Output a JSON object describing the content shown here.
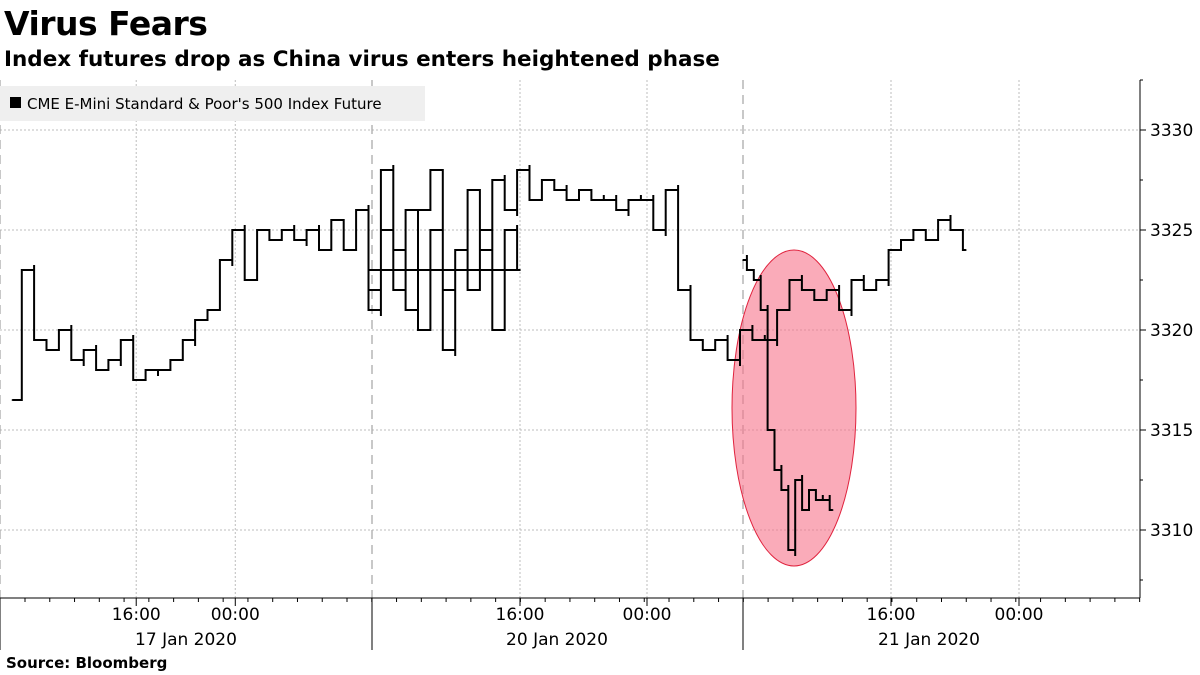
{
  "title": "Virus Fears",
  "subtitle": "Index futures drop as China virus enters heightened phase",
  "source": "Source: Bloomberg",
  "colors": {
    "line": "#000000",
    "highlight_fill": "#f7738a",
    "highlight_stroke": "#e0223d",
    "grid": "#bdbdbd",
    "legend_bg": "#efefef"
  },
  "chart_data": {
    "type": "line",
    "series": [
      {
        "name": "CME E-Mini Standard & Poor's 500 Index Future",
        "x": [
          "17 Jan 2020 06:00",
          "17 Jan 2020 07:00",
          "17 Jan 2020 08:00",
          "17 Jan 2020 09:00",
          "17 Jan 2020 10:00",
          "17 Jan 2020 11:00",
          "17 Jan 2020 12:00",
          "17 Jan 2020 13:00",
          "17 Jan 2020 14:00",
          "17 Jan 2020 15:00",
          "17 Jan 2020 16:00",
          "17 Jan 2020 17:00",
          "17 Jan 2020 18:00",
          "17 Jan 2020 19:00",
          "17 Jan 2020 20:00",
          "17 Jan 2020 21:00",
          "17 Jan 2020 22:00",
          "17 Jan 2020 23:00",
          "18 Jan 2020 00:00",
          "18 Jan 2020 01:00",
          "18 Jan 2020 02:00",
          "18 Jan 2020 03:00",
          "18 Jan 2020 04:00",
          "18 Jan 2020 05:00",
          "18 Jan 2020 06:00",
          "18 Jan 2020 07:00",
          "18 Jan 2020 08:00",
          "18 Jan 2020 09:00",
          "18 Jan 2020 10:00",
          "18 Jan 2020 11:00",
          "18 Jan 2020 12:00",
          "18 Jan 2020 13:00",
          "18 Jan 2020 14:00",
          "18 Jan 2020 15:00",
          "18 Jan 2020 16:00",
          "18 Jan 2020 17:00",
          "18 Jan 2020 18:00",
          "18 Jan 2020 19:00",
          "18 Jan 2020 20:00",
          "18 Jan 2020 21:00",
          "18 Jan 2020 22:00",
          "18 Jan 2020 23:00",
          "19 Jan 2020 00:00",
          "19 Jan 2020 01:00",
          "19 Jan 2020 02:00",
          "19 Jan 2020 03:00",
          "19 Jan 2020 04:00",
          "19 Jan 2020 05:00",
          "19 Jan 2020 06:00",
          "19 Jan 2020 07:00",
          "19 Jan 2020 08:00",
          "19 Jan 2020 09:00",
          "19 Jan 2020 10:00",
          "19 Jan 2020 11:00",
          "19 Jan 2020 12:00",
          "19 Jan 2020 13:00",
          "19 Jan 2020 14:00",
          "19 Jan 2020 15:00",
          "19 Jan 2020 16:00",
          "19 Jan 2020 17:00",
          "19 Jan 2020 18:00",
          "19 Jan 2020 19:00",
          "19 Jan 2020 20:00",
          "19 Jan 2020 21:00",
          "19 Jan 2020 22:00",
          "19 Jan 2020 23:00",
          "20 Jan 2020 00:00",
          "20 Jan 2020 01:00",
          "20 Jan 2020 02:00",
          "20 Jan 2020 03:00",
          "20 Jan 2020 04:00",
          "20 Jan 2020 05:00",
          "20 Jan 2020 06:00",
          "20 Jan 2020 07:00",
          "20 Jan 2020 08:00",
          "20 Jan 2020 09:00",
          "20 Jan 2020 10:00",
          "20 Jan 2020 11:00",
          "20 Jan 2020 12:00",
          "20 Jan 2020 13:00",
          "20 Jan 2020 14:00",
          "20 Jan 2020 15:00",
          "20 Jan 2020 16:00",
          "20 Jan 2020 17:00",
          "20 Jan 2020 18:00",
          "20 Jan 2020 19:00",
          "20 Jan 2020 20:00",
          "20 Jan 2020 21:00",
          "20 Jan 2020 22:00",
          "20 Jan 2020 23:00",
          "21 Jan 2020 00:00",
          "21 Jan 2020 01:00",
          "21 Jan 2020 02:00",
          "21 Jan 2020 03:00",
          "21 Jan 2020 04:00",
          "21 Jan 2020 05:00",
          "21 Jan 2020 06:00",
          "21 Jan 2020 07:00",
          "21 Jan 2020 08:00",
          "21 Jan 2020 09:00",
          "21 Jan 2020 10:00",
          "21 Jan 2020 11:00",
          "21 Jan 2020 12:00",
          "21 Jan 2020 13:00",
          "21 Jan 2020 14:00"
        ],
        "values": [
          3316.5,
          3323,
          3319.5,
          3319,
          3320,
          3318.5,
          3319,
          3318,
          3318.5,
          3319.5,
          3317.5,
          3318,
          3318,
          3318.5,
          3319.5,
          3320.5,
          3321,
          3323.5,
          3325,
          3322.5,
          3325,
          3324.5,
          3325,
          3324.5,
          3325,
          3324,
          3325.5,
          3324,
          3326,
          3321,
          3328,
          3322,
          3326,
          3320,
          3325,
          3319,
          3324,
          3322,
          3325,
          3320,
          3325,
          3323,
          3322,
          3325,
          3324,
          3321,
          3326,
          3328,
          3322,
          3324,
          3327,
          3324,
          3327.5,
          3326,
          3328,
          3326.5,
          3327.5,
          3327,
          3326.5,
          3327,
          3326.5,
          3326.5,
          3326,
          3326.5,
          3326.5,
          3325,
          3327,
          3322,
          3319.5,
          3319,
          3319.5,
          3318.5,
          3320,
          3319.5,
          3319.5,
          3321,
          3322.5,
          3322,
          3321.5,
          3322,
          3321,
          3322.5,
          3322,
          3322.5,
          3324,
          3324.5,
          3325,
          3324.5,
          3325.5,
          3325,
          3324,
          3323.5,
          3323,
          3322.5,
          3321,
          3315,
          3313,
          3312,
          3309,
          3312.5,
          3311,
          3312,
          3311.5,
          3311.5,
          3311
        ]
      }
    ],
    "gap_after_index": 90,
    "y_ticks": [
      3310,
      3315,
      3320,
      3325,
      3330
    ],
    "ylim": [
      3306.5,
      3332.5
    ],
    "x_ticks": [
      "16:00",
      "00:00",
      "16:00",
      "00:00",
      "16:00",
      "00:00"
    ],
    "x_groups": [
      "17 Jan 2020",
      "20 Jan 2020",
      "21 Jan 2020"
    ],
    "annotation": "highlighted ellipse around the drop on 21 Jan 2020",
    "grid": true,
    "legend_position": "top-left"
  }
}
